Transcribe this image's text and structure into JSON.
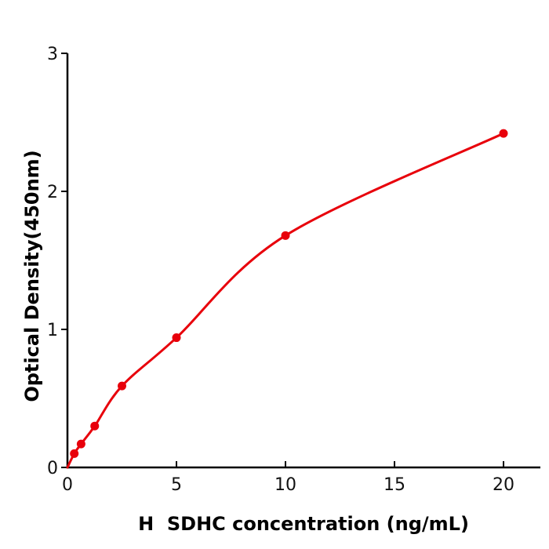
{
  "chart_data": {
    "type": "scatter",
    "title": "",
    "xlabel": "H  SDHC concentration (ng/mL)",
    "ylabel": "Optical Density(450nm)",
    "x": [
      0.313,
      0.625,
      1.25,
      2.5,
      5,
      10,
      20
    ],
    "series": [
      {
        "name": "Optical Density",
        "values": [
          0.1,
          0.17,
          0.3,
          0.59,
          0.94,
          1.68,
          2.42
        ]
      }
    ],
    "curve_start": {
      "x": 0,
      "y": 0
    },
    "x_ticks": [
      "0",
      "5",
      "10",
      "15",
      "20"
    ],
    "y_ticks": [
      "0",
      "1",
      "2",
      "3"
    ],
    "xlim": [
      0,
      21.7
    ],
    "ylim": [
      0,
      3
    ],
    "grid": false,
    "legend": "none",
    "marker_color": "#e8000b",
    "line_color": "#e8000b",
    "axis_color": "#000000",
    "tick_label_color": "#111111"
  }
}
